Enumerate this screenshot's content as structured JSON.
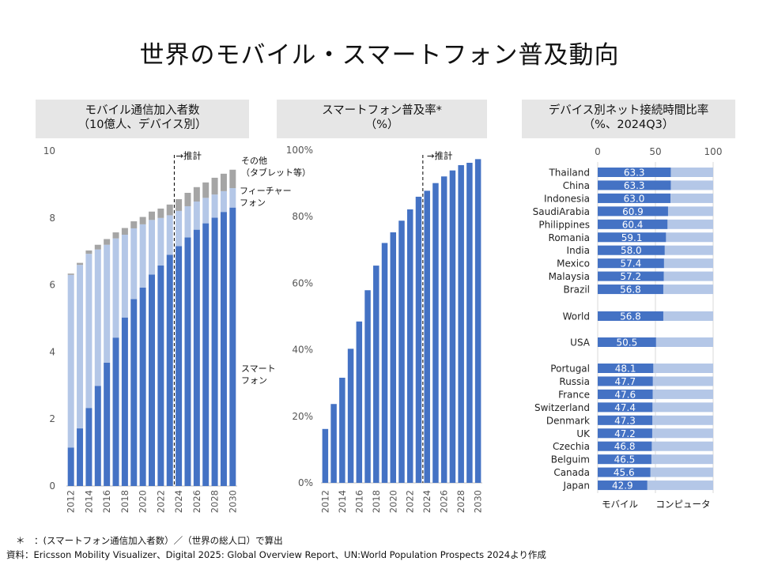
{
  "title": "世界のモバイル・スマートフォン普及動向",
  "headers": {
    "left": [
      "モバイル通信加入者数",
      "（10億人、デバイス別）"
    ],
    "middle": [
      "スマートフォン普及率*",
      "（%）"
    ],
    "right": [
      "デバイス別ネット接続時間比率",
      "（%、2024Q3）"
    ]
  },
  "footnotes": {
    "note": "＊　：(スマートフォン通信加入者数）／（世界の総人口）で算出",
    "source": "資料：Ericsson Mobility Visualizer、Digital 2025: Global Overview Report、UN:World Population Prospects 2024より作成"
  },
  "colors": {
    "smartphone": "#4472c4",
    "feature": "#b4c7e7",
    "other": "#a5a5a5",
    "grid": "#d9d9d9",
    "forecast": "#000000"
  },
  "chart_data": [
    {
      "type": "bar",
      "stacked": true,
      "title": "モバイル通信加入者数（10億人、デバイス別）",
      "categories": [
        "2012",
        "2013",
        "2014",
        "2015",
        "2016",
        "2017",
        "2018",
        "2019",
        "2020",
        "2021",
        "2022",
        "2023",
        "2024",
        "2025",
        "2026",
        "2027",
        "2028",
        "2029",
        "2030"
      ],
      "x_tick_labels": [
        "2012",
        "2014",
        "2016",
        "2018",
        "2020",
        "2022",
        "2024",
        "2026",
        "2028",
        "2030"
      ],
      "forecast_label": "→推計",
      "forecast_start": "2024",
      "ylim": [
        0,
        10
      ],
      "y_ticks": [
        "0",
        "2",
        "4",
        "6",
        "8",
        "10"
      ],
      "series": [
        {
          "name": "スマートフォン",
          "label_lines": [
            "スマート",
            "フォン"
          ],
          "values": [
            1.15,
            1.72,
            2.33,
            2.99,
            3.68,
            4.43,
            5.03,
            5.58,
            5.92,
            6.31,
            6.58,
            6.9,
            7.16,
            7.42,
            7.65,
            7.84,
            8.01,
            8.18,
            8.31
          ]
        },
        {
          "name": "フィーチャーフォン",
          "label_lines": [
            "フィーチャー",
            "フォン"
          ],
          "values": [
            5.15,
            4.88,
            4.6,
            4.07,
            3.52,
            2.96,
            2.47,
            2.11,
            1.89,
            1.63,
            1.42,
            1.18,
            1.05,
            0.93,
            0.84,
            0.76,
            0.69,
            0.62,
            0.58
          ]
        },
        {
          "name": "その他（タブレット等）",
          "label_lines": [
            "その他",
            "（タブレット等）"
          ],
          "values": [
            0.04,
            0.06,
            0.1,
            0.14,
            0.17,
            0.18,
            0.2,
            0.21,
            0.22,
            0.25,
            0.28,
            0.32,
            0.35,
            0.4,
            0.43,
            0.46,
            0.5,
            0.52,
            0.55
          ]
        }
      ]
    },
    {
      "type": "bar",
      "title": "スマートフォン普及率*（%）",
      "categories": [
        "2012",
        "2013",
        "2014",
        "2015",
        "2016",
        "2017",
        "2018",
        "2019",
        "2020",
        "2021",
        "2022",
        "2023",
        "2024",
        "2025",
        "2026",
        "2027",
        "2028",
        "2029",
        "2030"
      ],
      "x_tick_labels": [
        "2012",
        "2014",
        "2016",
        "2018",
        "2020",
        "2022",
        "2024",
        "2026",
        "2028",
        "2030"
      ],
      "forecast_label": "→推計",
      "forecast_start": "2024",
      "ylim": [
        0,
        100
      ],
      "y_ticks": [
        "0%",
        "20%",
        "40%",
        "60%",
        "80%",
        "100%"
      ],
      "values": [
        16.2,
        23.7,
        31.6,
        40.3,
        48.5,
        57.9,
        65.3,
        72.1,
        75.3,
        78.8,
        82.2,
        86.0,
        87.8,
        90.1,
        92.1,
        93.9,
        95.5,
        96.2,
        97.3
      ]
    },
    {
      "type": "bar",
      "orientation": "horizontal",
      "stacked": true,
      "title": "デバイス別ネット接続時間比率（%、2024Q3）",
      "xlim": [
        0,
        100
      ],
      "x_ticks": [
        "0",
        "50",
        "100"
      ],
      "series_names": [
        "モバイル",
        "コンピュータ"
      ],
      "groups": [
        {
          "categories": [
            "Thailand",
            "China",
            "Indonesia",
            "SaudiArabia",
            "Philippines",
            "Romania",
            "India",
            "Mexico",
            "Malaysia",
            "Brazil"
          ],
          "values": [
            "63.3",
            "63.3",
            "63.0",
            "60.9",
            "60.4",
            "59.1",
            "58.0",
            "57.4",
            "57.2",
            "56.8"
          ]
        },
        {
          "categories": [
            "World"
          ],
          "values": [
            "56.8"
          ]
        },
        {
          "categories": [
            "USA"
          ],
          "values": [
            "50.5"
          ]
        },
        {
          "categories": [
            "Portugal",
            "Russia",
            "France",
            "Switzerland",
            "Denmark",
            "UK",
            "Czechia",
            "Belguim",
            "Canada",
            "Japan"
          ],
          "values": [
            "48.1",
            "47.7",
            "47.6",
            "47.4",
            "47.3",
            "47.2",
            "46.8",
            "46.5",
            "45.6",
            "42.9"
          ]
        }
      ]
    }
  ]
}
